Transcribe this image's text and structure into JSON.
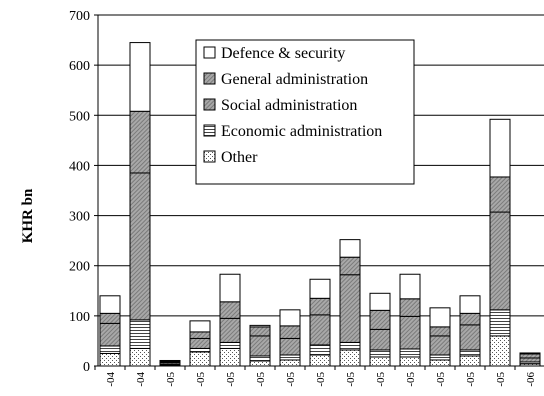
{
  "chart_data": {
    "type": "bar",
    "stacked": true,
    "title": "",
    "xlabel": "",
    "ylabel": "KHR bn",
    "ylim": [
      0,
      700
    ],
    "yticks": [
      "0",
      "100",
      "200",
      "300",
      "400",
      "500",
      "600",
      "700"
    ],
    "grid": "horizontal",
    "legend_position": "top-center",
    "categories": [
      "-04",
      "-04",
      "-05",
      "-05",
      "-05",
      "-05",
      "-05",
      "-05",
      "-05",
      "-05",
      "-05",
      "-05",
      "-05",
      "-05",
      "-06"
    ],
    "series": [
      {
        "name": "Other",
        "key": "other",
        "fill": "pat-dots",
        "values": [
          25,
          35,
          2,
          28,
          35,
          10,
          12,
          22,
          32,
          18,
          18,
          12,
          20,
          60,
          4
        ]
      },
      {
        "name": "Economic administration",
        "key": "economic",
        "fill": "pat-hlines",
        "values": [
          15,
          57,
          2,
          7,
          12,
          10,
          10,
          20,
          15,
          14,
          16,
          10,
          12,
          52,
          4
        ]
      },
      {
        "name": "Social administration",
        "key": "social",
        "fill": "pat-hatch",
        "values": [
          45,
          293,
          3,
          20,
          48,
          40,
          33,
          60,
          135,
          41,
          65,
          38,
          50,
          195,
          8
        ]
      },
      {
        "name": "General administration",
        "key": "general",
        "fill": "pat-hatch",
        "values": [
          20,
          123,
          2,
          13,
          33,
          18,
          25,
          33,
          35,
          38,
          35,
          18,
          23,
          70,
          8
        ]
      },
      {
        "name": "Defence & security",
        "key": "defence",
        "fill": "#ffffff",
        "values": [
          35,
          137,
          2,
          22,
          55,
          3,
          32,
          38,
          35,
          34,
          49,
          38,
          35,
          115,
          2
        ]
      }
    ],
    "legend_order": [
      "defence",
      "general",
      "social",
      "economic",
      "other"
    ]
  }
}
